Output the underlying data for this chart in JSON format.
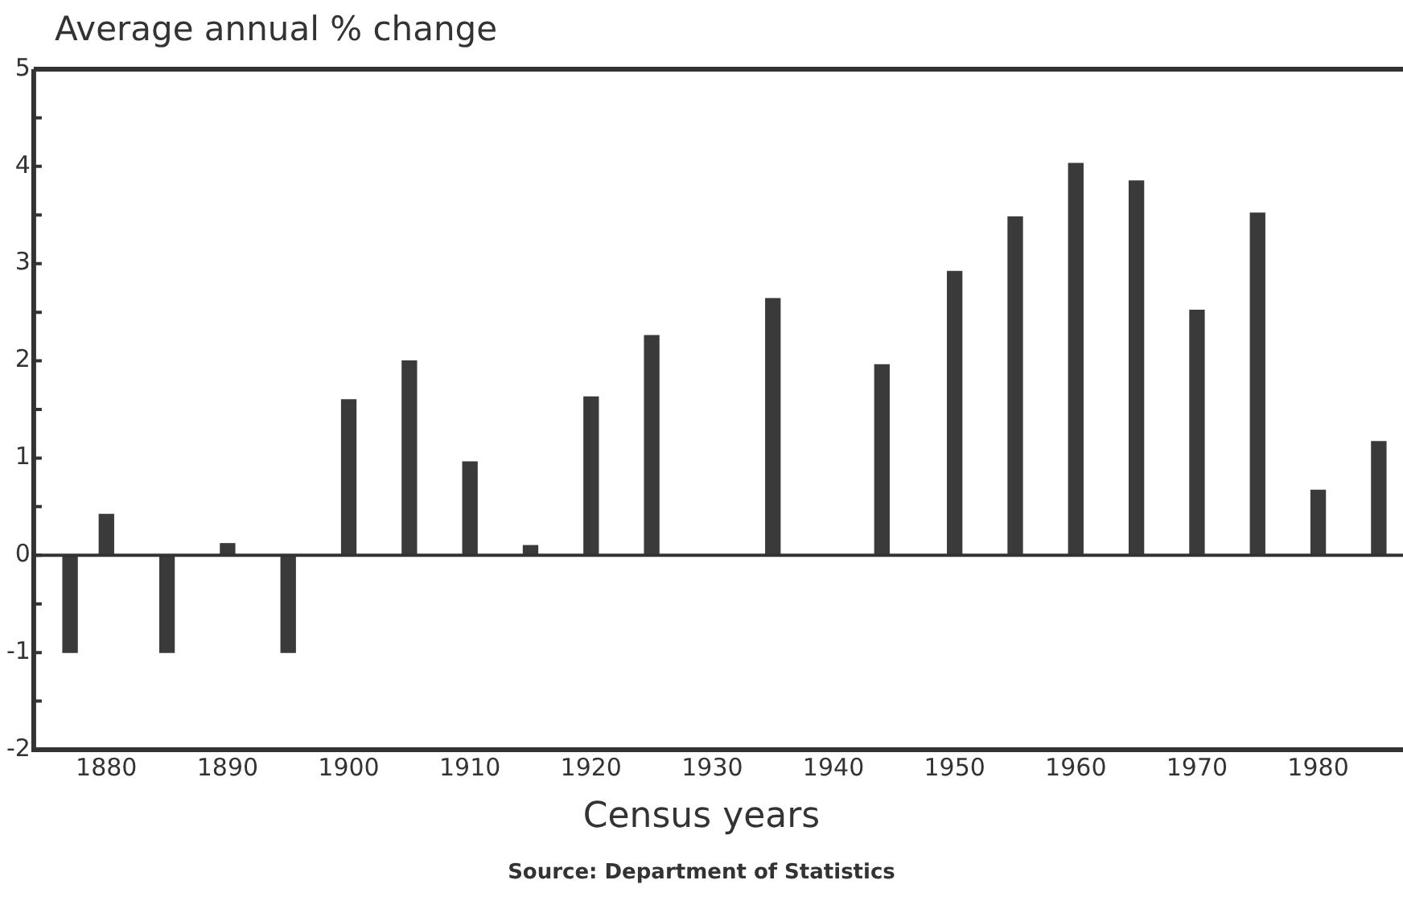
{
  "chart_data": {
    "type": "bar",
    "ylabel": "Average annual % change",
    "xlabel": "Census years",
    "annotations": [
      "Source: Department of Statistics"
    ],
    "x": [
      1877,
      1880,
      1885,
      1890,
      1895,
      1900,
      1905,
      1910,
      1915,
      1920,
      1925,
      1935,
      1944,
      1950,
      1955,
      1960,
      1965,
      1970,
      1975,
      1980,
      1985
    ],
    "values": [
      -1.0,
      0.42,
      -1.0,
      0.12,
      -1.0,
      1.6,
      2.0,
      0.96,
      0.1,
      1.63,
      2.26,
      2.64,
      1.96,
      2.92,
      3.48,
      4.03,
      3.85,
      2.52,
      3.52,
      0.67,
      1.17
    ],
    "color": "#3a3a3a",
    "xlim": [
      1874,
      1987
    ],
    "xticks": [
      1880,
      1890,
      1900,
      1910,
      1920,
      1930,
      1940,
      1950,
      1960,
      1970,
      1980
    ],
    "ylim": [
      -2,
      5
    ],
    "yticks": [
      -2,
      {
        "value": -1.5,
        "label": null
      },
      -1,
      {
        "value": -0.5,
        "label": null
      },
      0,
      {
        "value": 0.5,
        "label": null
      },
      1,
      {
        "value": 1.5,
        "label": null
      },
      2,
      {
        "value": 2.5,
        "label": null
      },
      3,
      {
        "value": 3.5,
        "label": null
      },
      4,
      {
        "value": 4.5,
        "label": null
      },
      5
    ],
    "ref_lines": [
      {
        "axis": "y",
        "value": 0,
        "color": "#333333"
      }
    ],
    "grid": false,
    "legend": false
  }
}
